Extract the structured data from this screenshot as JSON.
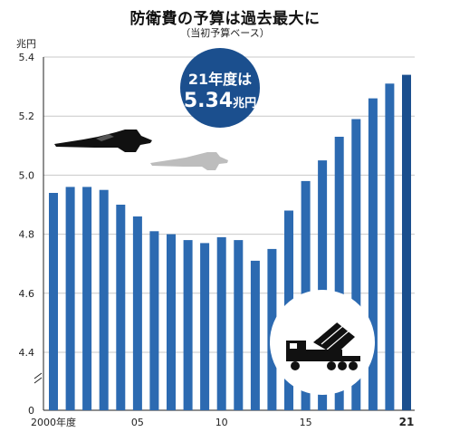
{
  "title": "防衛費の予算は過去最大に",
  "subtitle": "（当初予算ベース）",
  "unit_label": "兆円",
  "callout": {
    "line1": "21年度は",
    "value": "5.34",
    "unit": "兆円"
  },
  "icons": [
    "fighter-jet-icon",
    "fighter-jet-shadow-icon",
    "missile-launcher-icon"
  ],
  "colors": {
    "bar": "#2c6ab1",
    "bar_highlight": "#1b4f8e",
    "grid": "#c8c8c8",
    "callout": "#1b4f8e"
  },
  "chart_data": {
    "type": "bar",
    "categories": [
      "2000",
      "2001",
      "2002",
      "2003",
      "2004",
      "2005",
      "2006",
      "2007",
      "2008",
      "2009",
      "2010",
      "2011",
      "2012",
      "2013",
      "2014",
      "2015",
      "2016",
      "2017",
      "2018",
      "2019",
      "2020",
      "2021"
    ],
    "x_tick_labels": [
      {
        "index": 0,
        "label": "2000年度"
      },
      {
        "index": 5,
        "label": "05"
      },
      {
        "index": 10,
        "label": "10"
      },
      {
        "index": 15,
        "label": "15"
      },
      {
        "index": 21,
        "label": "21"
      }
    ],
    "values": [
      4.94,
      4.96,
      4.96,
      4.95,
      4.9,
      4.86,
      4.81,
      4.8,
      4.78,
      4.77,
      4.79,
      4.78,
      4.71,
      4.75,
      4.88,
      4.98,
      5.05,
      5.13,
      5.19,
      5.26,
      5.31,
      5.34
    ],
    "y_ticks": [
      "5.4",
      "5.2",
      "5.0",
      "4.8",
      "4.6",
      "4.4",
      "0"
    ],
    "ylim": [
      4.3,
      5.4
    ],
    "axis_break": true,
    "grid": true,
    "ylabel": "兆円"
  }
}
